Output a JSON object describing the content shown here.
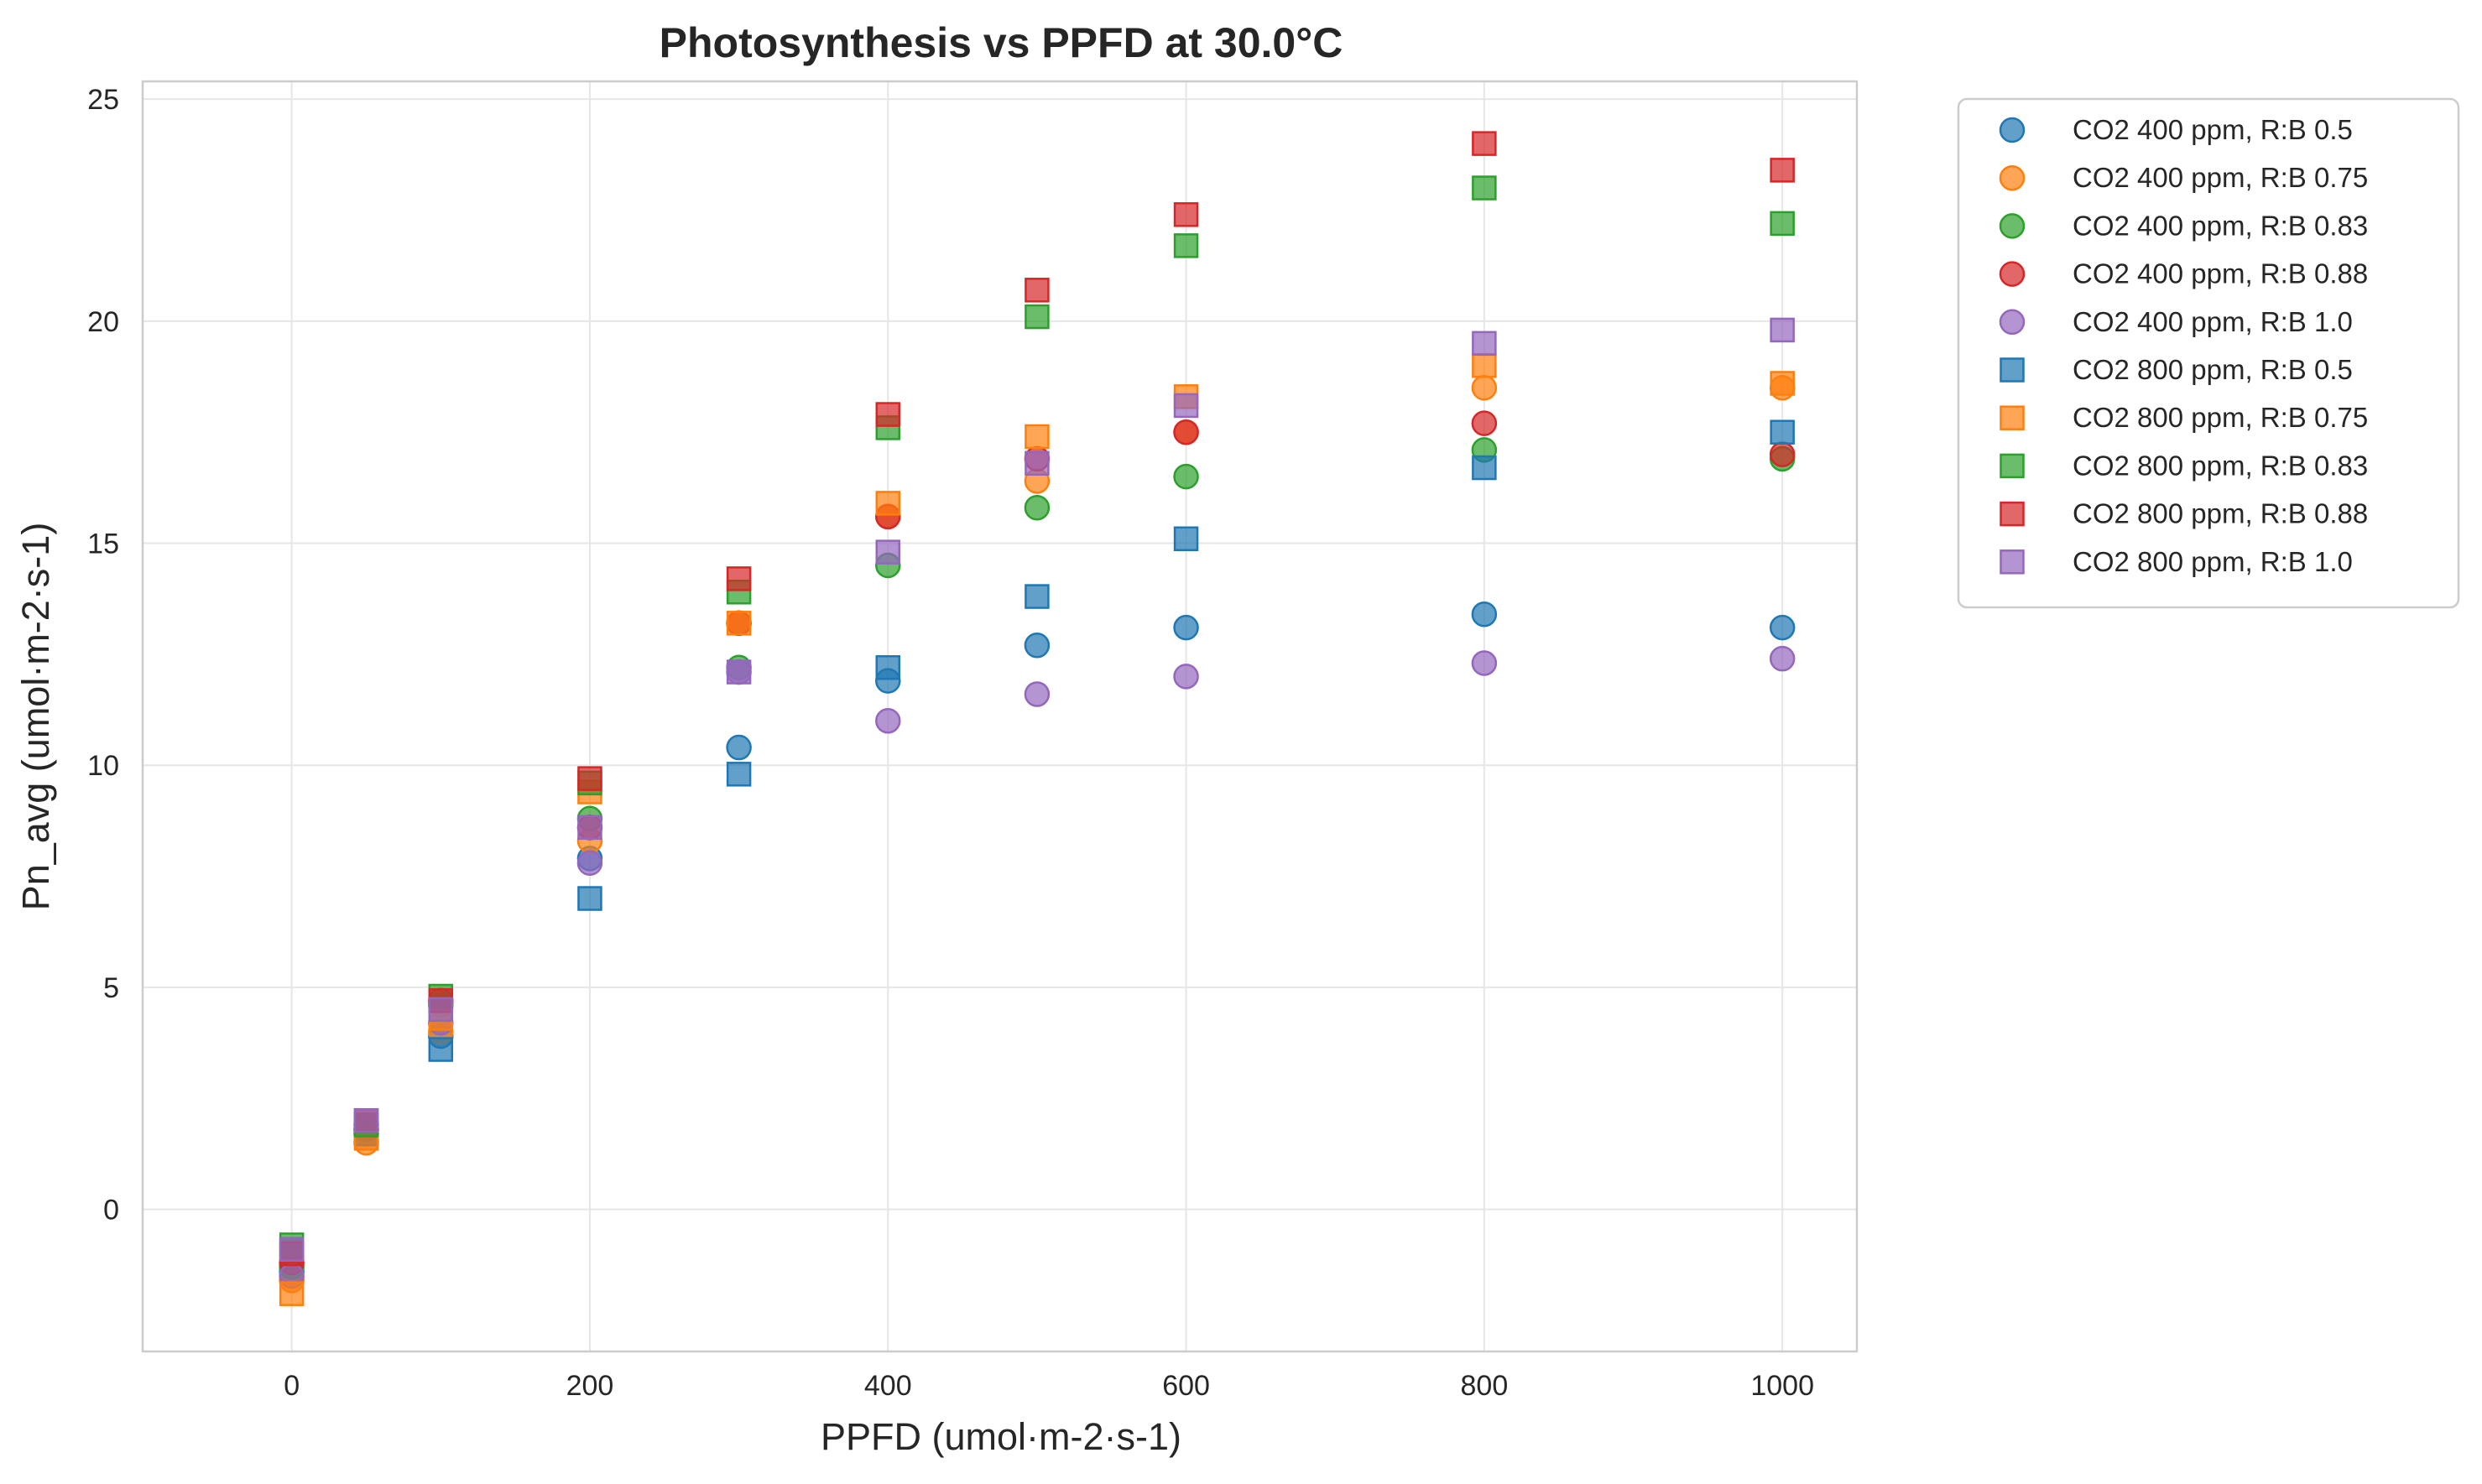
{
  "colors": {
    "blue": "#1f77b4",
    "orange": "#ff7f0e",
    "green": "#2ca02c",
    "red": "#d62728",
    "purple": "#9467bd"
  },
  "chart_data": {
    "type": "scatter",
    "title": "Photosynthesis vs PPFD at 30.0°C",
    "xlabel": "PPFD (umol·m-2·s-1)",
    "ylabel": "Pn_avg (umol·m-2·s-1)",
    "xlim": [
      -100,
      1050
    ],
    "ylim": [
      -3.2,
      25.4
    ],
    "xticks": [
      0,
      200,
      400,
      600,
      800,
      1000
    ],
    "yticks": [
      0,
      5,
      10,
      15,
      20,
      25
    ],
    "grid": true,
    "legend_position": "outside-upper-right",
    "series": [
      {
        "name": "CO2 400 ppm, R:B 0.5",
        "marker": "circle",
        "color": "#1f77b4",
        "points": [
          [
            0,
            -1.4
          ],
          [
            50,
            1.7
          ],
          [
            100,
            3.9
          ],
          [
            200,
            7.9
          ],
          [
            300,
            10.4
          ],
          [
            400,
            11.9
          ],
          [
            500,
            12.7
          ],
          [
            600,
            13.1
          ],
          [
            800,
            13.4
          ],
          [
            1000,
            13.1
          ]
        ]
      },
      {
        "name": "CO2 400 ppm, R:B 0.75",
        "marker": "circle",
        "color": "#ff7f0e",
        "points": [
          [
            0,
            -1.6
          ],
          [
            50,
            1.5
          ],
          [
            100,
            4.0
          ],
          [
            200,
            8.3
          ],
          [
            300,
            13.2
          ],
          [
            400,
            15.6
          ],
          [
            500,
            16.4
          ],
          [
            600,
            17.5
          ],
          [
            800,
            18.5
          ],
          [
            1000,
            18.5
          ]
        ]
      },
      {
        "name": "CO2 400 ppm, R:B 0.83",
        "marker": "circle",
        "color": "#2ca02c",
        "points": [
          [
            0,
            -1.3
          ],
          [
            50,
            1.8
          ],
          [
            100,
            4.6
          ],
          [
            200,
            8.8
          ],
          [
            300,
            12.2
          ],
          [
            400,
            14.5
          ],
          [
            500,
            15.8
          ],
          [
            600,
            16.5
          ],
          [
            800,
            17.1
          ],
          [
            1000,
            16.9
          ]
        ]
      },
      {
        "name": "CO2 400 ppm, R:B 0.88",
        "marker": "circle",
        "color": "#d62728",
        "points": [
          [
            0,
            -1.2
          ],
          [
            50,
            1.8
          ],
          [
            100,
            4.7
          ],
          [
            200,
            8.6
          ],
          [
            300,
            13.2
          ],
          [
            400,
            15.6
          ],
          [
            500,
            16.9
          ],
          [
            600,
            17.5
          ],
          [
            800,
            17.7
          ],
          [
            1000,
            17.0
          ]
        ]
      },
      {
        "name": "CO2 400 ppm, R:B 1.0",
        "marker": "circle",
        "color": "#9467bd",
        "points": [
          [
            0,
            -1.5
          ],
          [
            50,
            1.9
          ],
          [
            100,
            4.2
          ],
          [
            200,
            7.8
          ],
          [
            300,
            12.1
          ],
          [
            400,
            11.0
          ],
          [
            500,
            11.6
          ],
          [
            600,
            12.0
          ],
          [
            800,
            12.3
          ],
          [
            1000,
            12.4
          ]
        ]
      },
      {
        "name": "CO2 800 ppm, R:B 0.5",
        "marker": "square",
        "color": "#1f77b4",
        "points": [
          [
            0,
            -0.9
          ],
          [
            50,
            1.7
          ],
          [
            100,
            3.6
          ],
          [
            200,
            7.0
          ],
          [
            300,
            9.8
          ],
          [
            400,
            12.2
          ],
          [
            500,
            13.8
          ],
          [
            600,
            15.1
          ],
          [
            800,
            16.7
          ],
          [
            1000,
            17.5
          ]
        ]
      },
      {
        "name": "CO2 800 ppm, R:B 0.75",
        "marker": "square",
        "color": "#ff7f0e",
        "points": [
          [
            0,
            -1.9
          ],
          [
            50,
            1.6
          ],
          [
            100,
            4.3
          ],
          [
            200,
            9.4
          ],
          [
            300,
            13.2
          ],
          [
            400,
            15.9
          ],
          [
            500,
            17.4
          ],
          [
            600,
            18.3
          ],
          [
            800,
            19.0
          ],
          [
            1000,
            18.6
          ]
        ]
      },
      {
        "name": "CO2 800 ppm, R:B 0.83",
        "marker": "square",
        "color": "#2ca02c",
        "points": [
          [
            0,
            -0.8
          ],
          [
            50,
            1.9
          ],
          [
            100,
            4.8
          ],
          [
            200,
            9.6
          ],
          [
            300,
            13.9
          ],
          [
            400,
            17.6
          ],
          [
            500,
            20.1
          ],
          [
            600,
            21.7
          ],
          [
            800,
            23.0
          ],
          [
            1000,
            22.2
          ]
        ]
      },
      {
        "name": "CO2 800 ppm, R:B 0.88",
        "marker": "square",
        "color": "#d62728",
        "points": [
          [
            0,
            -1.0
          ],
          [
            50,
            2.0
          ],
          [
            100,
            4.7
          ],
          [
            200,
            9.7
          ],
          [
            300,
            14.2
          ],
          [
            400,
            17.9
          ],
          [
            500,
            20.7
          ],
          [
            600,
            22.4
          ],
          [
            800,
            24.0
          ],
          [
            1000,
            23.4
          ]
        ]
      },
      {
        "name": "CO2 800 ppm, R:B 1.0",
        "marker": "square",
        "color": "#9467bd",
        "points": [
          [
            0,
            -0.9
          ],
          [
            50,
            2.0
          ],
          [
            100,
            4.5
          ],
          [
            200,
            8.6
          ],
          [
            300,
            12.1
          ],
          [
            400,
            14.8
          ],
          [
            500,
            16.8
          ],
          [
            600,
            18.1
          ],
          [
            800,
            19.5
          ],
          [
            1000,
            19.8
          ]
        ]
      }
    ]
  }
}
